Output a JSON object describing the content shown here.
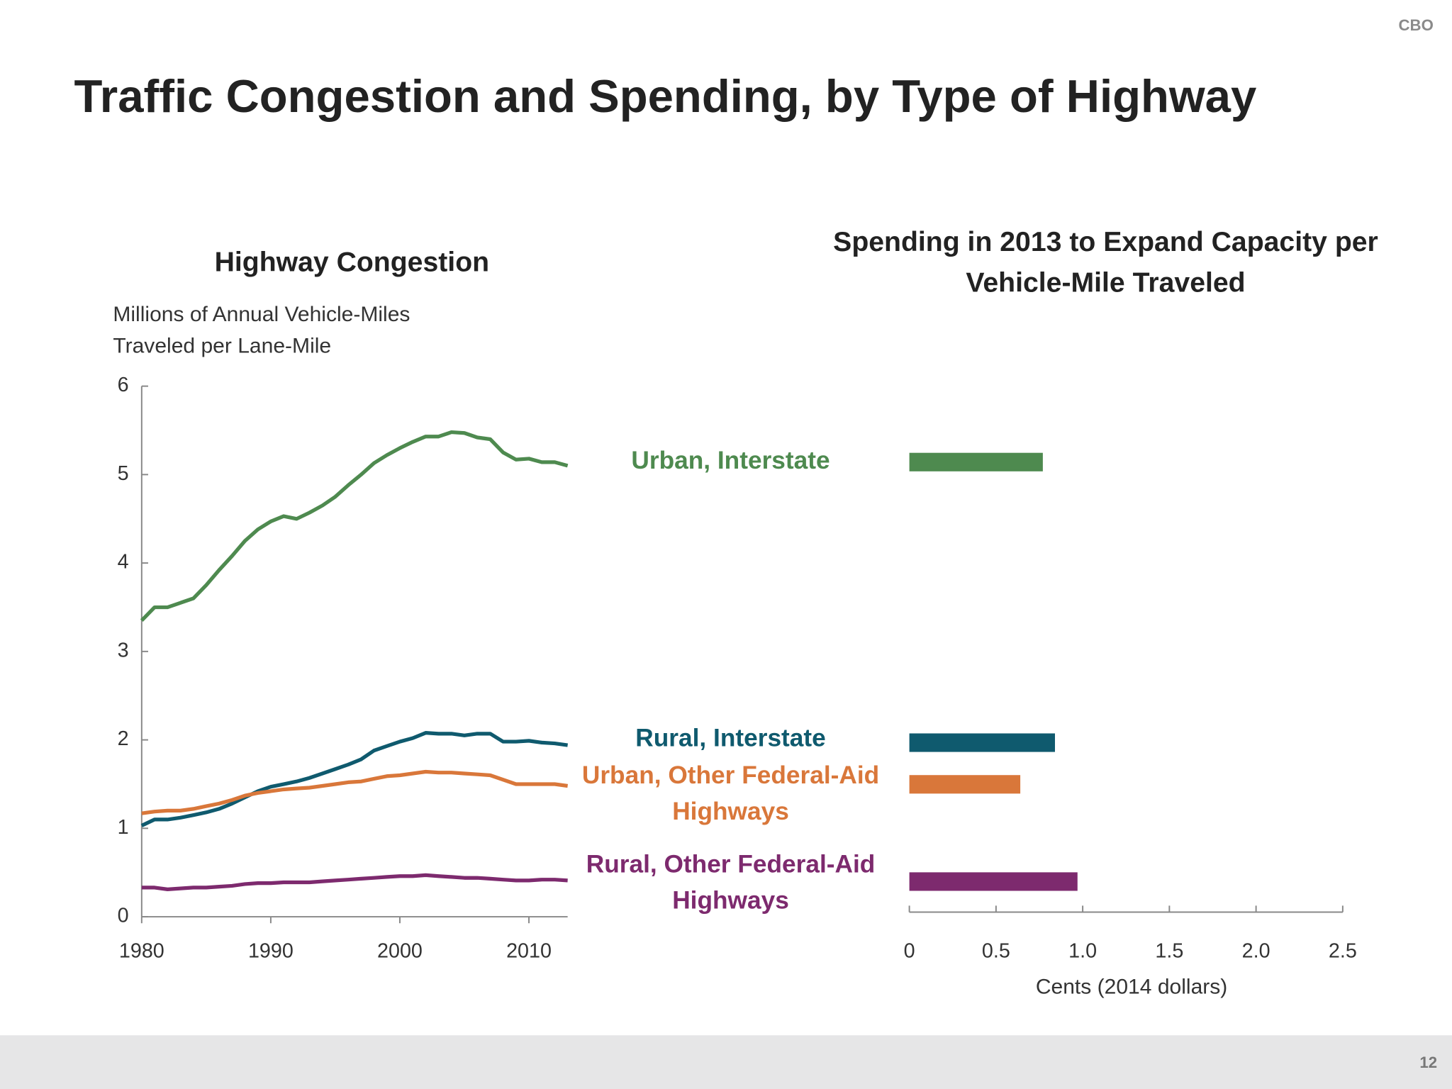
{
  "slide": {
    "brand": "CBO",
    "title": "Traffic Congestion and Spending, by Type of Highway",
    "page_number": "12"
  },
  "chart_data": [
    {
      "type": "line",
      "title": "Highway Congestion",
      "y_label": "Millions of Annual Vehicle-Miles Traveled per Lane-Mile",
      "x": [
        1980,
        1981,
        1982,
        1983,
        1984,
        1985,
        1986,
        1987,
        1988,
        1989,
        1990,
        1991,
        1992,
        1993,
        1994,
        1995,
        1996,
        1997,
        1998,
        1999,
        2000,
        2001,
        2002,
        2003,
        2004,
        2005,
        2006,
        2007,
        2008,
        2009,
        2010,
        2011,
        2012,
        2013
      ],
      "xlim": [
        1980,
        2013
      ],
      "xticks": [
        1980,
        1990,
        2000,
        2010
      ],
      "ylim": [
        0,
        6
      ],
      "yticks": [
        0,
        1,
        2,
        3,
        4,
        5,
        6
      ],
      "series": [
        {
          "name": "Urban, Interstate",
          "color": "#4e8a4f",
          "values": [
            3.35,
            3.5,
            3.5,
            3.55,
            3.6,
            3.75,
            3.92,
            4.08,
            4.25,
            4.38,
            4.47,
            4.53,
            4.5,
            4.57,
            4.65,
            4.75,
            4.88,
            5.0,
            5.13,
            5.22,
            5.3,
            5.37,
            5.43,
            5.43,
            5.48,
            5.47,
            5.42,
            5.4,
            5.25,
            5.17,
            5.18,
            5.14,
            5.14,
            5.1
          ]
        },
        {
          "name": "Rural, Interstate",
          "color": "#0f5a6e",
          "values": [
            1.03,
            1.1,
            1.1,
            1.12,
            1.15,
            1.18,
            1.22,
            1.28,
            1.35,
            1.42,
            1.47,
            1.5,
            1.53,
            1.57,
            1.62,
            1.67,
            1.72,
            1.78,
            1.88,
            1.93,
            1.98,
            2.02,
            2.08,
            2.07,
            2.07,
            2.05,
            2.07,
            2.07,
            1.98,
            1.98,
            1.99,
            1.97,
            1.96,
            1.94
          ]
        },
        {
          "name": "Urban, Other Federal-Aid Highways",
          "color": "#d9773a",
          "values": [
            1.17,
            1.19,
            1.2,
            1.2,
            1.22,
            1.25,
            1.28,
            1.32,
            1.37,
            1.4,
            1.42,
            1.44,
            1.45,
            1.46,
            1.48,
            1.5,
            1.52,
            1.53,
            1.56,
            1.59,
            1.6,
            1.62,
            1.64,
            1.63,
            1.63,
            1.62,
            1.61,
            1.6,
            1.55,
            1.5,
            1.5,
            1.5,
            1.5,
            1.48
          ]
        },
        {
          "name": "Rural, Other Federal-Aid Highways",
          "color": "#7d2a6e",
          "values": [
            0.33,
            0.33,
            0.31,
            0.32,
            0.33,
            0.33,
            0.34,
            0.35,
            0.37,
            0.38,
            0.38,
            0.39,
            0.39,
            0.39,
            0.4,
            0.41,
            0.42,
            0.43,
            0.44,
            0.45,
            0.46,
            0.46,
            0.47,
            0.46,
            0.45,
            0.44,
            0.44,
            0.43,
            0.42,
            0.41,
            0.41,
            0.42,
            0.42,
            0.41
          ]
        }
      ]
    },
    {
      "type": "hbar",
      "title": "Spending in 2013 to Expand Capacity per Vehicle-Mile Traveled",
      "x_label": "Cents (2014 dollars)",
      "categories": [
        null,
        null,
        null,
        null
      ],
      "values": [
        0.77,
        0.84,
        0.64,
        0.97
      ],
      "colors": [
        "#4e8a4f",
        "#0f5a6e",
        "#d9773a",
        "#7d2a6e"
      ],
      "xlim": [
        0,
        2.5
      ],
      "xticks": [
        0,
        0.5,
        {
          "value": 1,
          "label": "1.0"
        },
        1.5,
        {
          "value": 2,
          "label": "2.0"
        },
        2.5
      ]
    }
  ]
}
